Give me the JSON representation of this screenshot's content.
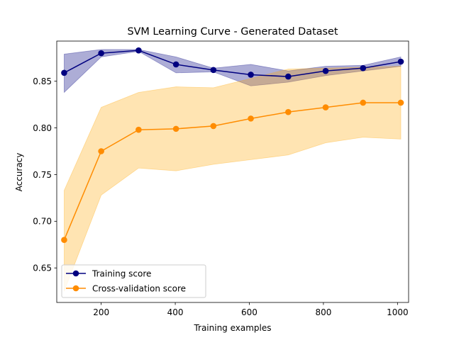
{
  "chart_data": {
    "type": "line",
    "title": "SVM Learning Curve - Generated Dataset",
    "xlabel": "Training examples",
    "ylabel": "Accuracy",
    "xlim": [
      80,
      1030
    ],
    "ylim": [
      0.613,
      0.893
    ],
    "x_ticks": [
      200,
      400,
      600,
      800,
      1000
    ],
    "y_ticks": [
      0.65,
      0.7,
      0.75,
      0.8,
      0.85
    ],
    "x_tick_labels": [
      "200",
      "400",
      "600",
      "800",
      "1000"
    ],
    "y_tick_labels": [
      "0.65",
      "0.70",
      "0.75",
      "0.80",
      "0.85"
    ],
    "grid": false,
    "legend_position": "lower-left",
    "x": [
      100,
      200,
      301,
      402,
      503,
      604,
      705,
      806,
      907,
      1009
    ],
    "series": [
      {
        "name": "Training score",
        "color": "#000080",
        "band_color": "#000080",
        "values": [
          0.859,
          0.88,
          0.883,
          0.868,
          0.862,
          0.857,
          0.855,
          0.861,
          0.864,
          0.871
        ],
        "band_upper": [
          0.879,
          0.884,
          0.884,
          0.876,
          0.864,
          0.868,
          0.861,
          0.866,
          0.867,
          0.876
        ],
        "band_lower": [
          0.838,
          0.876,
          0.882,
          0.859,
          0.86,
          0.845,
          0.849,
          0.856,
          0.861,
          0.866
        ]
      },
      {
        "name": "Cross-validation score",
        "color": "#ff8c00",
        "band_color": "#ffa500",
        "values": [
          0.68,
          0.775,
          0.798,
          0.799,
          0.802,
          0.81,
          0.817,
          0.822,
          0.827,
          0.827
        ],
        "band_upper": [
          0.733,
          0.822,
          0.838,
          0.844,
          0.843,
          0.853,
          0.863,
          0.864,
          0.865,
          0.866
        ],
        "band_lower": [
          0.625,
          0.728,
          0.757,
          0.754,
          0.761,
          0.766,
          0.771,
          0.784,
          0.79,
          0.788
        ]
      }
    ]
  }
}
